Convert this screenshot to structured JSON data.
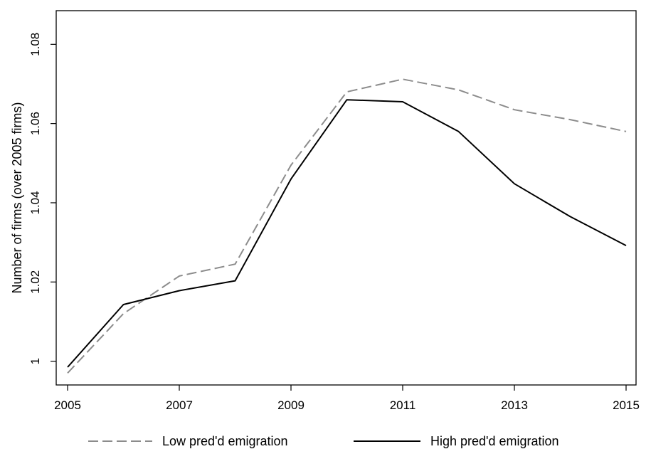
{
  "chart_data": {
    "type": "line",
    "title": "",
    "xlabel": "",
    "ylabel": "Number of firms (over 2005 firms)",
    "x": [
      2005,
      2006,
      2007,
      2008,
      2009,
      2010,
      2011,
      2012,
      2013,
      2014,
      2015
    ],
    "xticks": [
      "2005",
      "2007",
      "2009",
      "2011",
      "2013",
      "2015"
    ],
    "yticks": [
      "1",
      "1.02",
      "1.04",
      "1.06",
      "1.08"
    ],
    "xlim": [
      2005,
      2015
    ],
    "ylim": [
      0.994,
      1.0885
    ],
    "grid": false,
    "legend_position": "bottom",
    "series": [
      {
        "name": "Low pred'd emigration",
        "color": "#8c8c8c",
        "dash": "dashed",
        "values": [
          0.997,
          1.012,
          1.0215,
          1.0245,
          1.0495,
          1.068,
          1.0712,
          1.0685,
          1.0635,
          1.061,
          1.058
        ]
      },
      {
        "name": "High pred'd emigration",
        "color": "#000000",
        "dash": "solid",
        "values": [
          0.9985,
          1.0143,
          1.0178,
          1.0203,
          1.046,
          1.066,
          1.0655,
          1.058,
          1.0448,
          1.0365,
          1.0292
        ]
      }
    ]
  }
}
